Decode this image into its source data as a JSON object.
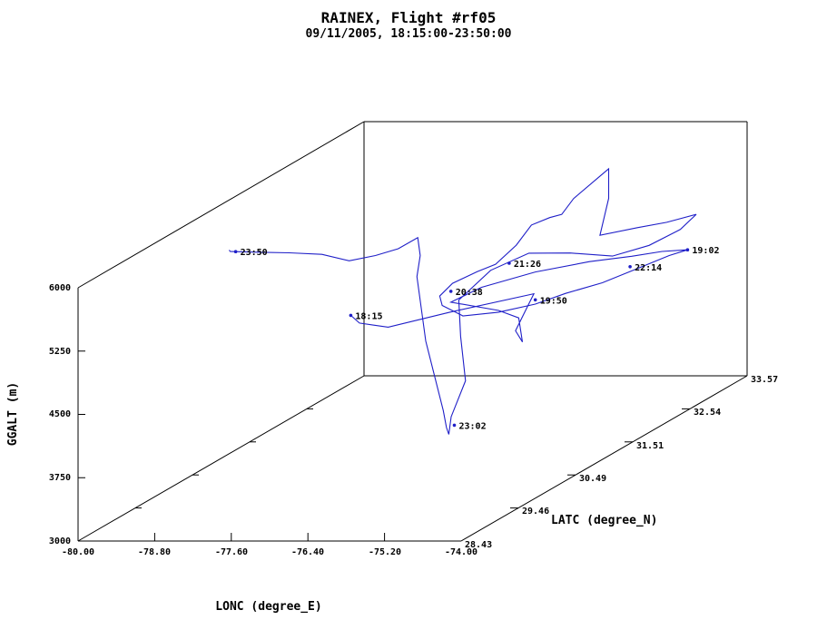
{
  "chart_data": {
    "type": "line",
    "title": "RAINEX, Flight #rf05",
    "subtitle": "09/11/2005, 18:15:00-23:50:00",
    "xlabel": "LONC (degree_E)",
    "ylabel": "GGALT (m)",
    "zlabel": "LATC (degree_N)",
    "x_ticks": [
      "-80.00",
      "-78.80",
      "-77.60",
      "-76.40",
      "-75.20",
      "-74.00"
    ],
    "y_ticks": [
      "3000",
      "3750",
      "4500",
      "5250",
      "6000"
    ],
    "z_ticks": [
      "28.43",
      "29.46",
      "30.49",
      "31.51",
      "32.54",
      "33.57"
    ],
    "xlim": [
      -80.0,
      -74.0
    ],
    "ylim": [
      3000,
      6000
    ],
    "zlim": [
      28.43,
      33.57
    ],
    "grid": false,
    "time_labels": [
      {
        "time": "18:15",
        "lon": -76.4,
        "alt": 5380,
        "lat": 29.2
      },
      {
        "time": "19:02",
        "lon": -74.0,
        "alt": 4900,
        "lat": 32.5
      },
      {
        "time": "19:50",
        "lon": -75.6,
        "alt": 4650,
        "lat": 31.6
      },
      {
        "time": "20:38",
        "lon": -76.4,
        "alt": 4980,
        "lat": 31.0
      },
      {
        "time": "21:26",
        "lon": -75.4,
        "alt": 5350,
        "lat": 30.9
      },
      {
        "time": "22:14",
        "lon": -74.9,
        "alt": 4700,
        "lat": 32.5
      },
      {
        "time": "23:02",
        "lon": -75.3,
        "alt": 3850,
        "lat": 29.8
      },
      {
        "time": "23:50",
        "lon": -78.9,
        "alt": 5830,
        "lat": 30.0
      }
    ],
    "series": [
      {
        "lon": [
          -76.4,
          -76.35,
          -76.3,
          -76.25,
          -75.8,
          -75.1,
          -75.2,
          -75.3,
          -75.28,
          -75.6,
          -76.0,
          -76.4,
          -76.1,
          -75.6,
          -75.1,
          -74.7,
          -74.4,
          -74.15,
          -74.0,
          -74.2,
          -74.5,
          -74.9,
          -75.3,
          -75.6,
          -76.0,
          -76.3,
          -76.45,
          -76.4,
          -76.2,
          -75.9,
          -75.7,
          -75.55,
          -75.4,
          -75.2,
          -75.1,
          -75.0,
          -74.85,
          -74.8,
          -74.8,
          -74.85,
          -74.7,
          -74.5,
          -74.3,
          -74.55,
          -74.95,
          -75.35,
          -75.75,
          -76.05,
          -76.3,
          -76.45,
          -75.9,
          -75.3,
          -75.35,
          -75.3,
          -75.25,
          -75.3,
          -75.4,
          -75.45,
          -75.4,
          -75.35,
          -75.7,
          -76.1,
          -76.6,
          -77.2,
          -77.8,
          -78.4,
          -78.9,
          -79.0
        ],
        "alt": [
          5380,
          5250,
          5150,
          5050,
          5000,
          4950,
          4800,
          4550,
          4380,
          4550,
          4600,
          4850,
          4950,
          4980,
          4950,
          4900,
          4880,
          4860,
          4900,
          4870,
          4800,
          4700,
          4650,
          4600,
          4580,
          4650,
          4850,
          5000,
          5150,
          5250,
          5300,
          5450,
          5650,
          5700,
          5700,
          5850,
          6000,
          6050,
          5700,
          5300,
          5200,
          5150,
          5130,
          4950,
          4800,
          4750,
          4900,
          5050,
          5000,
          4800,
          4600,
          4300,
          3950,
          3780,
          3900,
          4100,
          5000,
          5800,
          6050,
          6300,
          6150,
          6050,
          5950,
          5950,
          5930,
          5900,
          5870,
          5850
        ],
        "lat": [
          29.2,
          29.3,
          29.5,
          29.7,
          30.3,
          31.0,
          31.0,
          30.9,
          31.0,
          31.3,
          31.4,
          31.0,
          31.2,
          31.6,
          32.0,
          32.3,
          32.5,
          32.6,
          32.5,
          32.4,
          32.2,
          32.0,
          31.8,
          31.6,
          31.4,
          31.1,
          30.9,
          30.8,
          30.8,
          30.9,
          31.0,
          31.2,
          31.3,
          31.4,
          31.5,
          31.6,
          31.9,
          32.0,
          32.0,
          31.9,
          32.4,
          32.7,
          33.0,
          33.0,
          32.9,
          32.7,
          32.4,
          32.0,
          31.6,
          31.2,
          30.6,
          30.0,
          29.8,
          29.7,
          29.6,
          29.6,
          29.4,
          29.3,
          29.3,
          29.2,
          29.25,
          29.3,
          29.4,
          29.6,
          29.7,
          29.8,
          29.9,
          30.0
        ]
      }
    ]
  }
}
